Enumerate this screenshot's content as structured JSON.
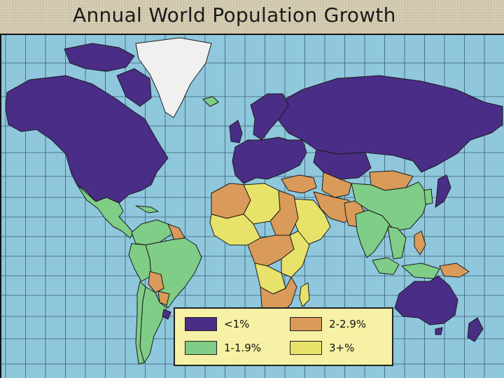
{
  "title": "Annual World Population Growth",
  "colors": {
    "ocean": "#8fc7dd",
    "grid": "#3a5e6e",
    "border": "#1b1b1b",
    "low": "#4a2d86",
    "mid_low": "#7fcd86",
    "mid_high": "#d99a5a",
    "high": "#e7e36a",
    "no_data": "#f0f0f0"
  },
  "legend": {
    "items": [
      {
        "label": "<1%",
        "color": "#4a2d86"
      },
      {
        "label": "2-2.9%",
        "color": "#d99a5a"
      },
      {
        "label": "1-1.9%",
        "color": "#7fcd86"
      },
      {
        "label": "3+%",
        "color": "#e7e36a"
      }
    ]
  }
}
